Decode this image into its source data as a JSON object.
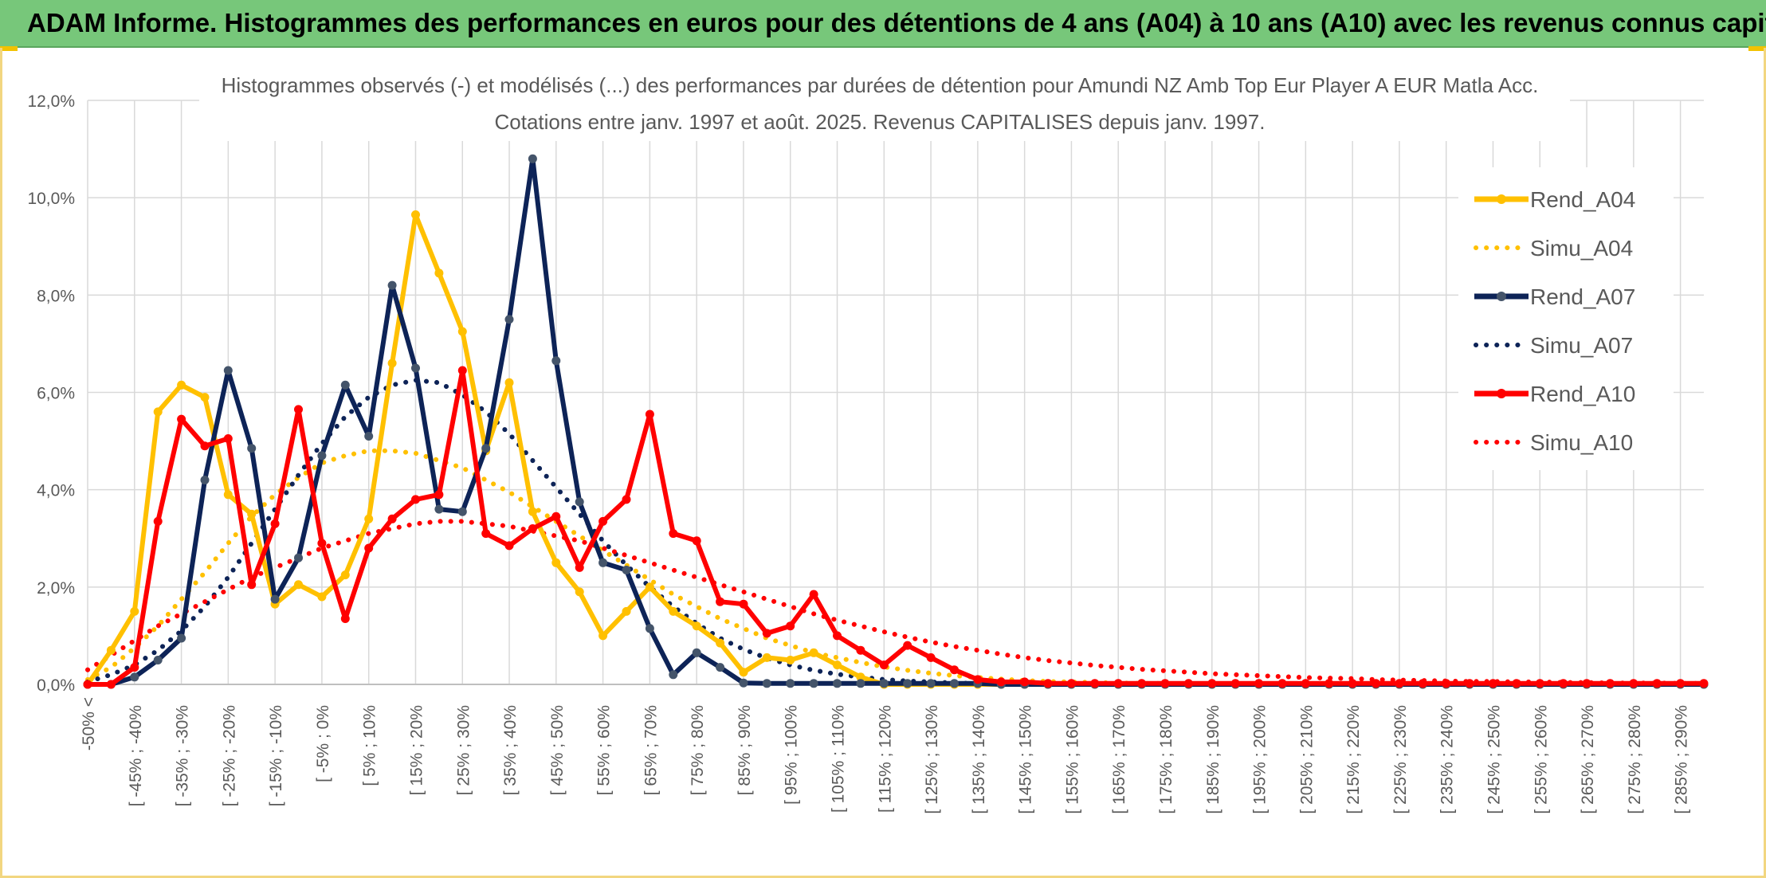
{
  "header": {
    "title": "ADAM Informe. Histogrammes des performances en euros pour des détentions de 4 ans (A04) à 10 ans (A10) avec les revenus connus capitalisés"
  },
  "colors": {
    "header_bg": "#77c77a",
    "a04": "#ffc000",
    "a07": "#0d2357",
    "a07_marker": "#44546a",
    "a10": "#ff0000",
    "grid": "#d9d9d9",
    "text": "#595959"
  },
  "chart_data": {
    "type": "line",
    "title": "Histogrammes observés (-) et modélisés (...) des performances par durées de détention pour Amundi NZ Amb Top Eur Player A EUR Matla Acc.",
    "subtitle": "Cotations entre janv. 1997 et août. 2025. Revenus CAPITALISES depuis janv. 1997.",
    "ylim": [
      0,
      12
    ],
    "yticks": [
      "0,0%",
      "2,0%",
      "4,0%",
      "6,0%",
      "8,0%",
      "10,0%",
      "12,0%"
    ],
    "legend_position": "right",
    "grid": true,
    "x_labels": [
      "-50% <",
      "[ -45% ; -40%",
      "[ -35% ; -30%",
      "[ -25% ; -20%",
      "[ -15% ; -10%",
      "[ -5% ; 0%",
      "[ 5% ; 10%",
      "[ 15% ; 20%",
      "[ 25% ; 30%",
      "[ 35% ; 40%",
      "[ 45% ; 50%",
      "[ 55% ; 60%",
      "[ 65% ; 70%",
      "[ 75% ; 80%",
      "[ 85% ; 90%",
      "[ 95% ; 100%",
      "[ 105% ; 110%",
      "[ 115% ; 120%",
      "[ 125% ; 130%",
      "[ 135% ; 140%",
      "[ 145% ; 150%",
      "[ 155% ; 160%",
      "[ 165% ; 170%",
      "[ 175% ; 180%",
      "[ 185% ; 190%",
      "[ 195% ; 200%",
      "[ 205% ; 210%",
      "[ 215% ; 220%",
      "[ 225% ; 230%",
      "[ 235% ; 240%",
      "[ 245% ; 250%",
      "[ 255% ; 260%",
      "[ 265% ; 270%",
      "[ 275% ; 280%",
      "[ 285% ; 290%"
    ],
    "series": [
      {
        "name": "Rend_A04",
        "style": "solid",
        "color": "#ffc000",
        "values": [
          0,
          0.7,
          1.5,
          5.6,
          6.15,
          5.9,
          3.9,
          3.5,
          1.65,
          2.05,
          1.8,
          2.25,
          3.4,
          6.6,
          9.65,
          8.45,
          7.25,
          4.8,
          6.2,
          3.55,
          2.5,
          1.9,
          1.0,
          1.5,
          2.0,
          1.5,
          1.2,
          0.85,
          0.25,
          0.55,
          0.5,
          0.65,
          0.4,
          0.15,
          0,
          0,
          0,
          0,
          0,
          0,
          0,
          0,
          0,
          0,
          0,
          0,
          0,
          0,
          0,
          0,
          0,
          0,
          0,
          0,
          0,
          0,
          0,
          0,
          0,
          0,
          0,
          0,
          0,
          0,
          0,
          0,
          0,
          0,
          0,
          0
        ]
      },
      {
        "name": "Simu_A04",
        "style": "dotted",
        "color": "#ffc000",
        "values": [
          0.1,
          0.35,
          0.75,
          1.2,
          1.75,
          2.3,
          2.9,
          3.45,
          3.9,
          4.25,
          4.55,
          4.7,
          4.8,
          4.8,
          4.75,
          4.6,
          4.45,
          4.2,
          3.95,
          3.65,
          3.35,
          3.05,
          2.75,
          2.45,
          2.15,
          1.85,
          1.6,
          1.35,
          1.15,
          0.95,
          0.8,
          0.65,
          0.55,
          0.45,
          0.36,
          0.29,
          0.23,
          0.18,
          0.14,
          0.11,
          0.08,
          0.06,
          0.05,
          0.04,
          0.03,
          0.02,
          0.02,
          0.01,
          0.01,
          0.01,
          0,
          0,
          0,
          0,
          0,
          0,
          0,
          0,
          0,
          0,
          0,
          0,
          0,
          0,
          0,
          0,
          0,
          0,
          0,
          0
        ]
      },
      {
        "name": "Rend_A07",
        "style": "solid",
        "color": "#0d2357",
        "values": [
          0,
          0,
          0.15,
          0.5,
          0.95,
          4.2,
          6.45,
          4.85,
          1.75,
          2.6,
          4.7,
          6.15,
          5.1,
          8.2,
          6.5,
          3.6,
          3.55,
          4.85,
          7.5,
          10.8,
          6.65,
          3.75,
          2.5,
          2.35,
          1.15,
          0.2,
          0.65,
          0.35,
          0.03,
          0.02,
          0.02,
          0.02,
          0.02,
          0.02,
          0.02,
          0.02,
          0.02,
          0.02,
          0.02,
          0,
          0,
          0,
          0,
          0,
          0,
          0,
          0,
          0,
          0,
          0,
          0,
          0,
          0,
          0,
          0,
          0,
          0,
          0,
          0,
          0,
          0,
          0,
          0,
          0,
          0,
          0,
          0,
          0,
          0,
          0
        ]
      },
      {
        "name": "Simu_A07",
        "style": "dotted",
        "color": "#0d2357",
        "values": [
          0.05,
          0.2,
          0.4,
          0.7,
          1.1,
          1.6,
          2.2,
          2.9,
          3.6,
          4.3,
          4.95,
          5.5,
          5.9,
          6.15,
          6.25,
          6.2,
          5.95,
          5.6,
          5.15,
          4.6,
          4.05,
          3.5,
          2.95,
          2.45,
          2.0,
          1.6,
          1.25,
          0.95,
          0.72,
          0.54,
          0.4,
          0.29,
          0.21,
          0.15,
          0.1,
          0.07,
          0.05,
          0.03,
          0.02,
          0.01,
          0.01,
          0,
          0,
          0,
          0,
          0,
          0,
          0,
          0,
          0,
          0,
          0,
          0,
          0,
          0,
          0,
          0,
          0,
          0,
          0,
          0,
          0,
          0,
          0,
          0,
          0,
          0,
          0,
          0,
          0
        ]
      },
      {
        "name": "Rend_A10",
        "style": "solid",
        "color": "#ff0000",
        "values": [
          0,
          0,
          0.35,
          3.35,
          5.45,
          4.9,
          5.05,
          2.05,
          3.3,
          5.65,
          2.9,
          1.35,
          2.8,
          3.4,
          3.8,
          3.9,
          6.45,
          3.1,
          2.85,
          3.2,
          3.45,
          2.4,
          3.35,
          3.8,
          5.55,
          3.1,
          2.95,
          1.7,
          1.65,
          1.05,
          1.2,
          1.85,
          1.0,
          0.7,
          0.4,
          0.8,
          0.55,
          0.3,
          0.1,
          0.05,
          0.05,
          0.02,
          0.02,
          0.02,
          0.02,
          0.02,
          0.02,
          0.02,
          0.02,
          0.02,
          0.02,
          0.02,
          0.02,
          0.02,
          0.02,
          0.02,
          0.02,
          0.02,
          0.02,
          0.02,
          0.02,
          0.02,
          0.02,
          0.02,
          0.02,
          0.02,
          0.02,
          0.02,
          0.02,
          0.02
        ]
      },
      {
        "name": "Simu_A10",
        "style": "dotted",
        "color": "#ff0000",
        "values": [
          0.3,
          0.6,
          0.9,
          1.2,
          1.45,
          1.7,
          1.95,
          2.2,
          2.4,
          2.6,
          2.8,
          2.95,
          3.1,
          3.2,
          3.3,
          3.35,
          3.35,
          3.3,
          3.25,
          3.15,
          3.05,
          2.95,
          2.8,
          2.65,
          2.5,
          2.35,
          2.2,
          2.05,
          1.9,
          1.75,
          1.6,
          1.45,
          1.32,
          1.2,
          1.08,
          0.97,
          0.87,
          0.78,
          0.7,
          0.62,
          0.55,
          0.49,
          0.44,
          0.39,
          0.35,
          0.31,
          0.28,
          0.25,
          0.22,
          0.2,
          0.18,
          0.16,
          0.14,
          0.13,
          0.12,
          0.1,
          0.09,
          0.08,
          0.07,
          0.06,
          0.06,
          0.05,
          0.05,
          0.04,
          0.04,
          0.03,
          0.03,
          0.03,
          0.02,
          0.02
        ]
      }
    ]
  }
}
